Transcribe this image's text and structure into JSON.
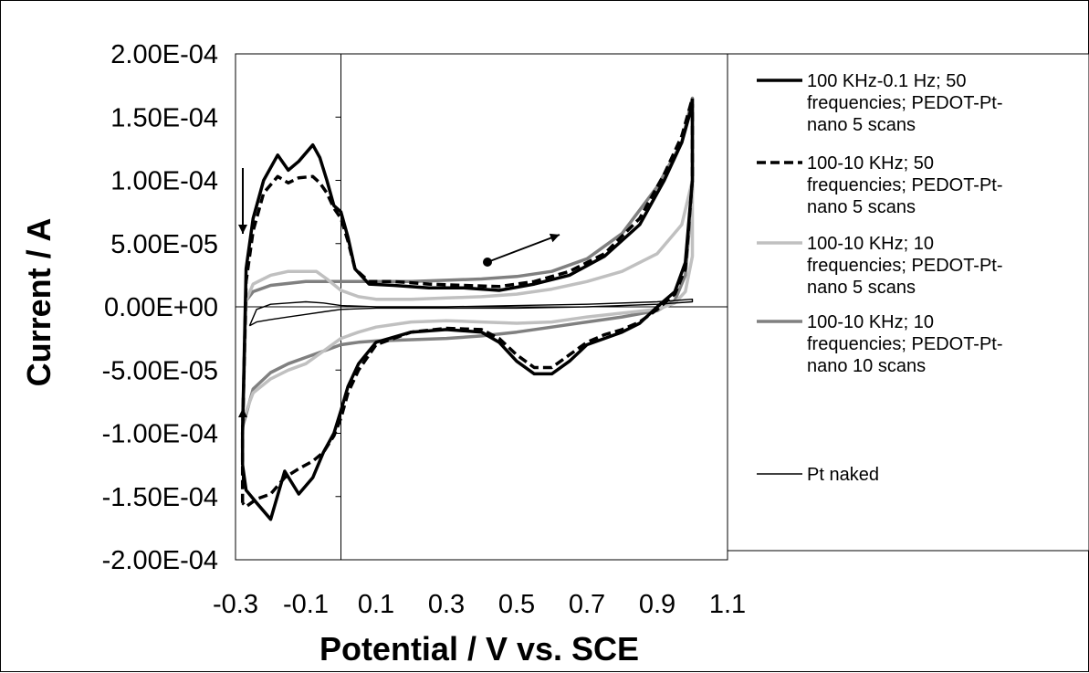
{
  "chart_data": {
    "type": "line",
    "title": "",
    "xlabel": "Potential / V vs. SCE",
    "ylabel": "Current / A",
    "xlim": [
      -0.3,
      1.1
    ],
    "ylim": [
      -0.0002,
      0.0002
    ],
    "x_ticks": [
      "-0.3",
      "-0.1",
      "0.1",
      "0.3",
      "0.5",
      "0.7",
      "0.9",
      "1.1"
    ],
    "y_ticks": [
      "2.00E-04",
      "1.50E-04",
      "1.00E-04",
      "5.00E-05",
      "0.00E+00",
      "-5.00E-05",
      "-1.00E-04",
      "-1.50E-04",
      "-2.00E-04"
    ],
    "grid": false,
    "legend_position": "right",
    "series": [
      {
        "name": "100 KHz-0.1 Hz; 50 frequencies; PEDOT-Pt-nano 5 scans",
        "legend_lines": [
          "100 KHz-0.1 Hz; 50",
          "frequencies; PEDOT-Pt-",
          "nano 5 scans"
        ],
        "color": "#000000",
        "dash": "solid",
        "x": [
          -0.28,
          -0.28,
          -0.27,
          -0.25,
          -0.22,
          -0.18,
          -0.15,
          -0.12,
          -0.08,
          -0.06,
          -0.04,
          -0.02,
          0.0,
          0.02,
          0.04,
          0.08,
          0.15,
          0.25,
          0.35,
          0.45,
          0.55,
          0.65,
          0.75,
          0.85,
          0.92,
          0.97,
          1.0,
          1.0,
          0.98,
          0.95,
          0.9,
          0.85,
          0.8,
          0.75,
          0.7,
          0.65,
          0.6,
          0.55,
          0.5,
          0.45,
          0.4,
          0.3,
          0.2,
          0.1,
          0.05,
          0.02,
          0.0,
          -0.02,
          -0.05,
          -0.08,
          -0.12,
          -0.16,
          -0.2,
          -0.24,
          -0.27,
          -0.28
        ],
        "y": [
          -0.000125,
          -0.0001,
          3e-05,
          7e-05,
          0.0001,
          0.00012,
          0.000108,
          0.000115,
          0.000128,
          0.000118,
          0.0001,
          8e-05,
          7.5e-05,
          5.5e-05,
          3e-05,
          1.8e-05,
          1.7e-05,
          1.5e-05,
          1.5e-05,
          1.3e-05,
          1.8e-05,
          2.5e-05,
          4e-05,
          6.5e-05,
          0.0001,
          0.00013,
          0.00016,
          0.0001,
          3.5e-05,
          1.2e-05,
          0.0,
          -1.3e-05,
          -2e-05,
          -2.5e-05,
          -3e-05,
          -4.3e-05,
          -5.3e-05,
          -5.3e-05,
          -4.3e-05,
          -2.8e-05,
          -2e-05,
          -1.8e-05,
          -2e-05,
          -2.8e-05,
          -4.5e-05,
          -6.3e-05,
          -8.2e-05,
          -0.0001,
          -0.000115,
          -0.000135,
          -0.000148,
          -0.00013,
          -0.000168,
          -0.000155,
          -0.000145,
          -0.000125
        ]
      },
      {
        "name": "100-10 KHz; 50 frequencies; PEDOT-Pt-nano 5 scans",
        "legend_lines": [
          "100-10 KHz; 50",
          "frequencies; PEDOT-Pt-",
          "nano 5 scans"
        ],
        "color": "#000000",
        "dash": "dashed",
        "x": [
          -0.28,
          -0.28,
          -0.27,
          -0.25,
          -0.22,
          -0.18,
          -0.15,
          -0.12,
          -0.08,
          -0.06,
          -0.04,
          -0.02,
          0.0,
          0.02,
          0.04,
          0.08,
          0.15,
          0.25,
          0.35,
          0.45,
          0.55,
          0.65,
          0.75,
          0.85,
          0.92,
          0.97,
          1.0,
          1.0,
          0.98,
          0.95,
          0.9,
          0.85,
          0.8,
          0.75,
          0.7,
          0.65,
          0.6,
          0.55,
          0.5,
          0.45,
          0.4,
          0.3,
          0.2,
          0.1,
          0.05,
          0.02,
          0.0,
          -0.02,
          -0.05,
          -0.08,
          -0.12,
          -0.16,
          -0.2,
          -0.24,
          -0.27,
          -0.28
        ],
        "y": [
          -0.000155,
          -0.0001,
          2e-05,
          6e-05,
          9e-05,
          0.000103,
          9.8e-05,
          0.000102,
          0.000103,
          9.8e-05,
          9e-05,
          7.8e-05,
          7e-05,
          5.2e-05,
          3e-05,
          2e-05,
          2e-05,
          1.8e-05,
          1.7e-05,
          1.6e-05,
          2e-05,
          2.8e-05,
          4.2e-05,
          7e-05,
          0.000105,
          0.000135,
          0.000165,
          0.0001,
          3e-05,
          1e-05,
          -2e-06,
          -1.2e-05,
          -1.8e-05,
          -2.2e-05,
          -2.8e-05,
          -3.8e-05,
          -4.8e-05,
          -4.8e-05,
          -3.8e-05,
          -2.5e-05,
          -1.8e-05,
          -1.7e-05,
          -2e-05,
          -3e-05,
          -5e-05,
          -6.8e-05,
          -8.8e-05,
          -0.000102,
          -0.000115,
          -0.000122,
          -0.000128,
          -0.000135,
          -0.000148,
          -0.000152,
          -0.000158,
          -0.000155
        ]
      },
      {
        "name": "100-10 KHz; 10 frequencies; PEDOT-Pt-nano 5 scans",
        "legend_lines": [
          "100-10 KHz; 10",
          "frequencies; PEDOT-Pt-",
          "nano 5 scans"
        ],
        "color": "#c0c0c0",
        "dash": "solid",
        "x": [
          -0.28,
          -0.27,
          -0.25,
          -0.2,
          -0.15,
          -0.1,
          -0.07,
          -0.04,
          0.0,
          0.05,
          0.1,
          0.2,
          0.3,
          0.4,
          0.5,
          0.6,
          0.7,
          0.8,
          0.9,
          0.97,
          1.0,
          1.0,
          0.98,
          0.95,
          0.9,
          0.8,
          0.7,
          0.6,
          0.5,
          0.4,
          0.3,
          0.2,
          0.1,
          0.05,
          0.0,
          -0.05,
          -0.1,
          -0.15,
          -0.2,
          -0.25,
          -0.28
        ],
        "y": [
          -9e-05,
          5e-06,
          1.8e-05,
          2.5e-05,
          2.8e-05,
          2.8e-05,
          2.8e-05,
          2.2e-05,
          1.3e-05,
          8e-06,
          6e-06,
          6e-06,
          7e-06,
          8e-06,
          1e-05,
          1.4e-05,
          2e-05,
          2.8e-05,
          4.2e-05,
          6.5e-05,
          0.0001,
          4e-05,
          1.2e-05,
          3e-06,
          -2e-06,
          -5e-06,
          -8e-06,
          -1.2e-05,
          -1.3e-05,
          -1.2e-05,
          -1.1e-05,
          -1.2e-05,
          -1.6e-05,
          -2e-05,
          -2.5e-05,
          -3.5e-05,
          -4.5e-05,
          -5e-05,
          -5.7e-05,
          -6.8e-05,
          -9e-05
        ]
      },
      {
        "name": "100-10 KHz; 10 frequencies; PEDOT-Pt-nano 10 scans",
        "legend_lines": [
          "100-10 KHz; 10",
          "frequencies; PEDOT-Pt-",
          "nano 10 scans"
        ],
        "color": "#808080",
        "dash": "solid",
        "x": [
          -0.28,
          -0.27,
          -0.25,
          -0.2,
          -0.1,
          0.0,
          0.1,
          0.2,
          0.3,
          0.4,
          0.5,
          0.6,
          0.7,
          0.8,
          0.9,
          0.97,
          1.0,
          1.0,
          0.98,
          0.95,
          0.9,
          0.8,
          0.7,
          0.6,
          0.5,
          0.4,
          0.3,
          0.2,
          0.1,
          0.05,
          0.0,
          -0.05,
          -0.1,
          -0.15,
          -0.2,
          -0.25,
          -0.28
        ],
        "y": [
          -9.5e-05,
          5e-06,
          1.2e-05,
          1.7e-05,
          2e-05,
          2e-05,
          2e-05,
          2e-05,
          2.1e-05,
          2.2e-05,
          2.4e-05,
          2.8e-05,
          3.8e-05,
          5.8e-05,
          9.5e-05,
          0.00013,
          0.000165,
          9e-05,
          2.5e-05,
          5e-06,
          -3e-06,
          -8e-06,
          -1.2e-05,
          -1.6e-05,
          -2e-05,
          -2.3e-05,
          -2.5e-05,
          -2.6e-05,
          -2.7e-05,
          -2.8e-05,
          -3e-05,
          -3.5e-05,
          -4e-05,
          -4.5e-05,
          -5.2e-05,
          -6.5e-05,
          -9.5e-05
        ]
      },
      {
        "name": "Pt naked",
        "legend_lines": [
          "Pt naked"
        ],
        "color": "#000000",
        "dash": "thin",
        "x": [
          -0.26,
          -0.24,
          -0.2,
          -0.15,
          -0.1,
          -0.05,
          0.0,
          0.1,
          0.3,
          0.5,
          0.7,
          0.9,
          1.0,
          1.0,
          0.9,
          0.7,
          0.5,
          0.3,
          0.1,
          0.0,
          -0.05,
          -0.1,
          -0.15,
          -0.2,
          -0.24,
          -0.26
        ],
        "y": [
          -1.5e-05,
          -2e-06,
          2e-06,
          3e-06,
          4e-06,
          3e-06,
          1e-06,
          0.0,
          0.0,
          1e-06,
          2e-06,
          4e-06,
          6e-06,
          4e-06,
          2e-06,
          0.0,
          -1e-06,
          -1e-06,
          -1e-06,
          -2e-06,
          -4e-06,
          -6e-06,
          -8e-06,
          -1e-05,
          -1.2e-05,
          -1.5e-05
        ]
      }
    ]
  }
}
